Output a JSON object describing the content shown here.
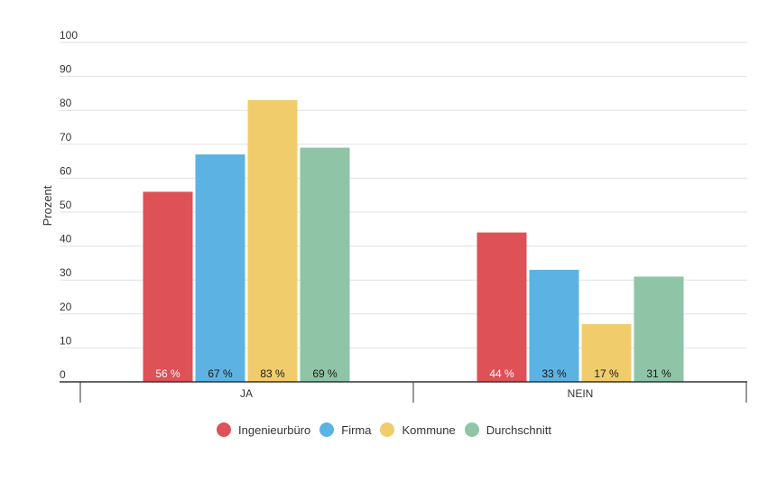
{
  "chart_data": {
    "type": "bar",
    "title": "",
    "xlabel": "",
    "ylabel": "Prozent",
    "ylim": [
      0,
      100
    ],
    "yticks": [
      0,
      10,
      20,
      30,
      40,
      50,
      60,
      70,
      80,
      90,
      100
    ],
    "grid": true,
    "legend_position": "bottom",
    "categories": [
      "JA",
      "NEIN"
    ],
    "series": [
      {
        "name": "Ingenieurbüro",
        "color": "#dd5157",
        "values": [
          56,
          44
        ],
        "labels": [
          "56 %",
          "44 %"
        ],
        "label_color": "#ffffff"
      },
      {
        "name": "Firma",
        "color": "#5cb3e3",
        "values": [
          67,
          33
        ],
        "labels": [
          "67 %",
          "33 %"
        ],
        "label_color": "#1a1a1a"
      },
      {
        "name": "Kommune",
        "color": "#f0cc6b",
        "values": [
          83,
          17
        ],
        "labels": [
          "83 %",
          "17 %"
        ],
        "label_color": "#1a1a1a"
      },
      {
        "name": "Durchschnitt",
        "color": "#8fc4a6",
        "values": [
          69,
          31
        ],
        "labels": [
          "69 %",
          "31 %"
        ],
        "label_color": "#1a1a1a"
      }
    ]
  }
}
